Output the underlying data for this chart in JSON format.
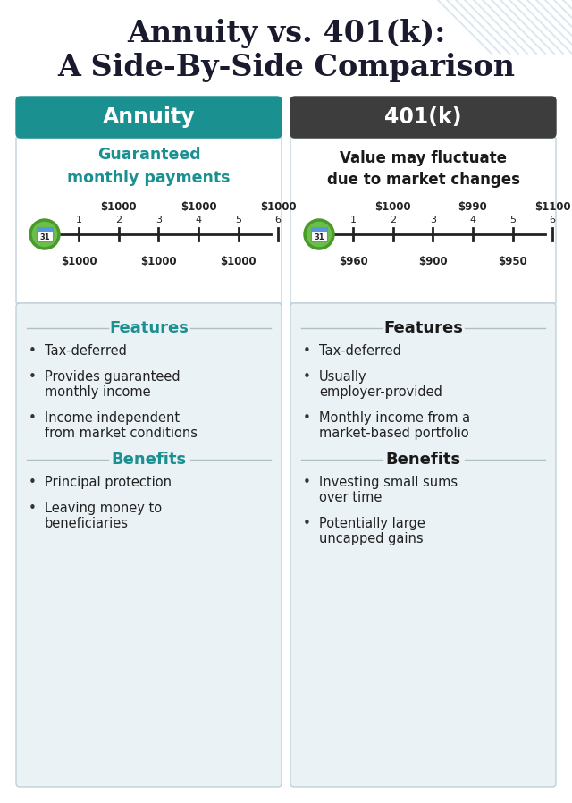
{
  "title_line1": "Annuity vs. 401(k):",
  "title_line2": "A Side-By-Side Comparison",
  "title_color": "#1a1a2e",
  "bg_color": "#ffffff",
  "left_header": "Annuity",
  "right_header": "401(k)",
  "left_header_bg": "#1a9090",
  "right_header_bg": "#3d3d3d",
  "header_text_color": "#ffffff",
  "left_subtitle": "Guaranteed\nmonthly payments",
  "right_subtitle": "Value may fluctuate\ndue to market changes",
  "left_subtitle_color": "#1a9090",
  "right_subtitle_color": "#1a1a1a",
  "panel_bg": "#eaf2f5",
  "panel_border": "#c0d0da",
  "top_panel_bg": "#ffffff",
  "annuity_top_labels": [
    "$1000",
    "$1000",
    "$1000"
  ],
  "annuity_bottom_labels": [
    "$1000",
    "$1000",
    "$1000"
  ],
  "k401_top_labels": [
    "$1000",
    "$990",
    "$1100"
  ],
  "k401_bottom_labels": [
    "$960",
    "$900",
    "$950"
  ],
  "timeline_color": "#222222",
  "left_features_title": "Features",
  "right_features_title": "Features",
  "left_features_color": "#1a9090",
  "right_features_color": "#1a1a1a",
  "left_features": [
    "Tax-deferred",
    "Provides guaranteed\nmonthly income",
    "Income independent\nfrom market conditions"
  ],
  "right_features": [
    "Tax-deferred",
    "Usually\nemployer-provided",
    "Monthly income from a\nmarket-based portfolio"
  ],
  "left_benefits_title": "Benefits",
  "right_benefits_title": "Benefits",
  "left_benefits_color": "#1a9090",
  "right_benefits_color": "#1a1a1a",
  "left_benefits": [
    "Principal protection",
    "Leaving money to\nbeneficiaries"
  ],
  "right_benefits": [
    "Investing small sums\nover time",
    "Potentially large\nuncapped gains"
  ],
  "bullet_color": "#333333",
  "calendar_bg": "#6abf4b",
  "calendar_border": "#4a9a2a",
  "stripe_color": "#dde8ee"
}
